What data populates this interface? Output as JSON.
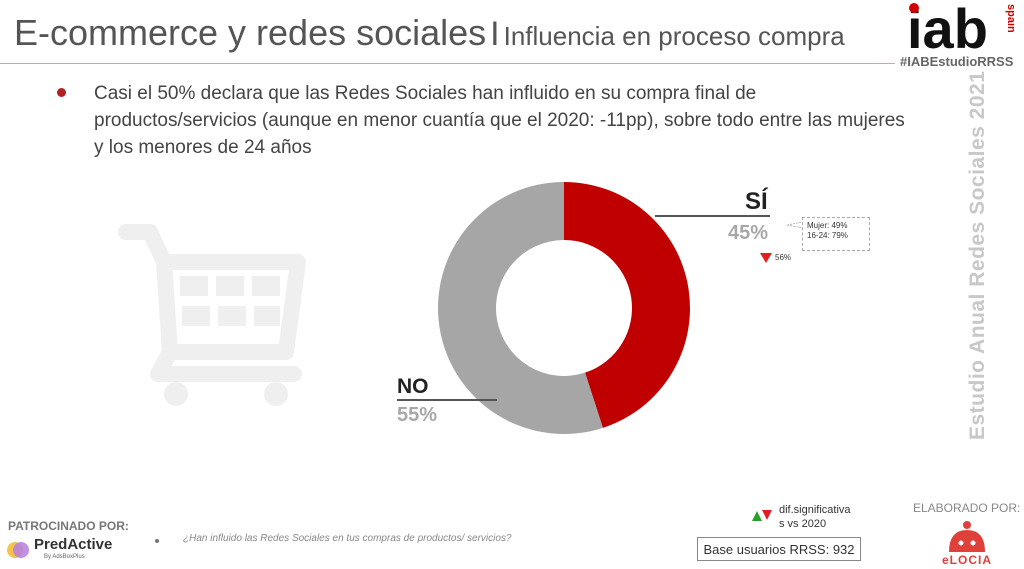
{
  "header": {
    "title_main": "E-commerce y redes sociales",
    "separator": "I",
    "title_sub": "Influencia en proceso compra",
    "hashtag": "#IABEstudioRRSS",
    "logo_text": "iab",
    "logo_sub": "spain"
  },
  "bullet": {
    "text": "Casi el 50% declara que las Redes Sociales han influido en su compra final de productos/servicios (aunque en menor cuantía que el 2020: -11pp), sobre todo entre las mujeres y los menores de 24 años"
  },
  "side_text": "Estudio Anual Redes Sociales 2021",
  "chart_data": {
    "type": "pie",
    "variant": "donut",
    "slices": [
      {
        "label": "SÍ",
        "value": 45,
        "display": "45%",
        "color": "#c00000"
      },
      {
        "label": "NO",
        "value": 55,
        "display": "55%",
        "color": "#a6a6a6"
      }
    ],
    "annotations": {
      "note_line1": "Mujer: 49%",
      "note_line2": "16-24: 79%",
      "prev_value": "56%"
    }
  },
  "legend": {
    "sig_line1": "dif.significativa",
    "sig_line2": "s vs 2020"
  },
  "footer": {
    "sponsor_label": "PATROCINADO POR:",
    "sponsor_name": "PredActive",
    "sponsor_sub": "By AdsBoxPlus",
    "question": "¿Han influido las Redes Sociales en tus compras de productos/ servicios?",
    "base": "Base usuarios RRSS: 932",
    "made_by_label": "ELABORADO POR:",
    "made_by_name": "eLOCIA"
  },
  "colors": {
    "accent": "#c00000",
    "grey": "#a6a6a6"
  }
}
